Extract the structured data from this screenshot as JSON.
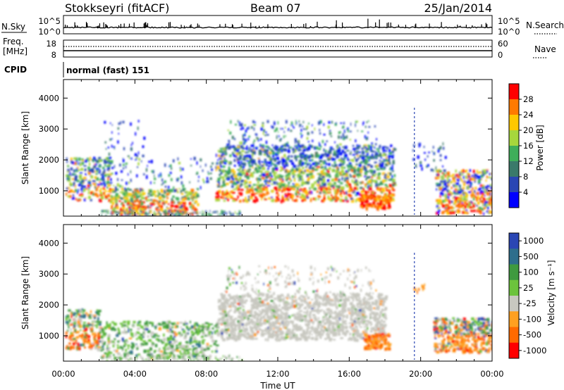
{
  "header": {
    "station": "Stokkseyri (fitACF)",
    "beam": "Beam 07",
    "date": "25/Jan/2014"
  },
  "status_panels": {
    "nsky_label": "N.Sky",
    "nsky_ticks": [
      "10^5",
      "10^0"
    ],
    "nsearch_label": "N.Search",
    "nsearch_ticks": [
      "10^5",
      "10^0"
    ],
    "freq_label_1": "Freq.",
    "freq_label_2": "[MHz]",
    "freq_ticks": [
      "18",
      "8"
    ],
    "nave_label": "Nave",
    "nave_ticks": [
      "60",
      "0"
    ],
    "cpid_label": "CPID",
    "cpid_value": "normal (fast) 151"
  },
  "chart_data": [
    {
      "type": "heatmap",
      "parameter": "power",
      "ylabel": "Slant Range [km]",
      "ylim": [
        180,
        4600
      ],
      "yticks": [
        "1000",
        "2000",
        "3000",
        "4000"
      ],
      "colorbar_label": "Power [dB]",
      "colorbar_ticks": [
        "28",
        "24",
        "20",
        "16",
        "12",
        "8",
        "4"
      ],
      "colorbar_colors": [
        "#ff0000",
        "#ff7a00",
        "#ffc800",
        "#a6d73c",
        "#3fae5a",
        "#3a7a6a",
        "#2a46b4",
        "#0000ff"
      ],
      "features": [
        {
          "t_start": 0.0,
          "t_end": 2.6,
          "range_km": [
            600,
            2100
          ],
          "level": "8-28 dB"
        },
        {
          "t_start": 2.6,
          "t_end": 7.5,
          "range_km": [
            250,
            1100
          ],
          "level": "12-28 dB"
        },
        {
          "t_start": 8.5,
          "t_end": 18.5,
          "range_km": [
            700,
            2600
          ],
          "level": "8-28 dB"
        },
        {
          "t_start": 20.8,
          "t_end": 24.0,
          "range_km": [
            300,
            1700
          ],
          "level": "8-28 dB"
        }
      ]
    },
    {
      "type": "heatmap",
      "parameter": "velocity",
      "ylabel": "Slant Range [km]",
      "xlabel": "Time UT",
      "ylim": [
        180,
        4600
      ],
      "yticks": [
        "1000",
        "2000",
        "3000",
        "4000"
      ],
      "x_categories": [
        "00:00",
        "04:00",
        "08:00",
        "12:00",
        "16:00",
        "20:00",
        "00:00"
      ],
      "colorbar_label": "Velocity [m s⁻¹]",
      "colorbar_ticks": [
        "1000",
        "500",
        "100",
        "25",
        "-25",
        "-100",
        "-500",
        "-1000"
      ],
      "colorbar_colors": [
        "#2a46b4",
        "#2e6e8c",
        "#3f9a3f",
        "#6cc33c",
        "#c8c8c0",
        "#ffa020",
        "#ff6a00",
        "#ff0000"
      ],
      "features": [
        {
          "t_start": 0.0,
          "t_end": 2.0,
          "range_km": [
            600,
            1800
          ],
          "velocity": "+100 to -500 m/s"
        },
        {
          "t_start": 2.0,
          "t_end": 8.6,
          "range_km": [
            300,
            1500
          ],
          "velocity": "+25 to +500 m/s"
        },
        {
          "t_start": 8.6,
          "t_end": 18.0,
          "range_km": [
            900,
            2400
          ],
          "velocity": "-25 to +25 m/s"
        },
        {
          "t_start": 16.8,
          "t_end": 18.2,
          "range_km": [
            600,
            1100
          ],
          "velocity": "-100 to -500 m/s"
        },
        {
          "t_start": 20.7,
          "t_end": 24.0,
          "range_km": [
            500,
            1600
          ],
          "velocity": "-100 to -500 m/s"
        }
      ]
    }
  ]
}
